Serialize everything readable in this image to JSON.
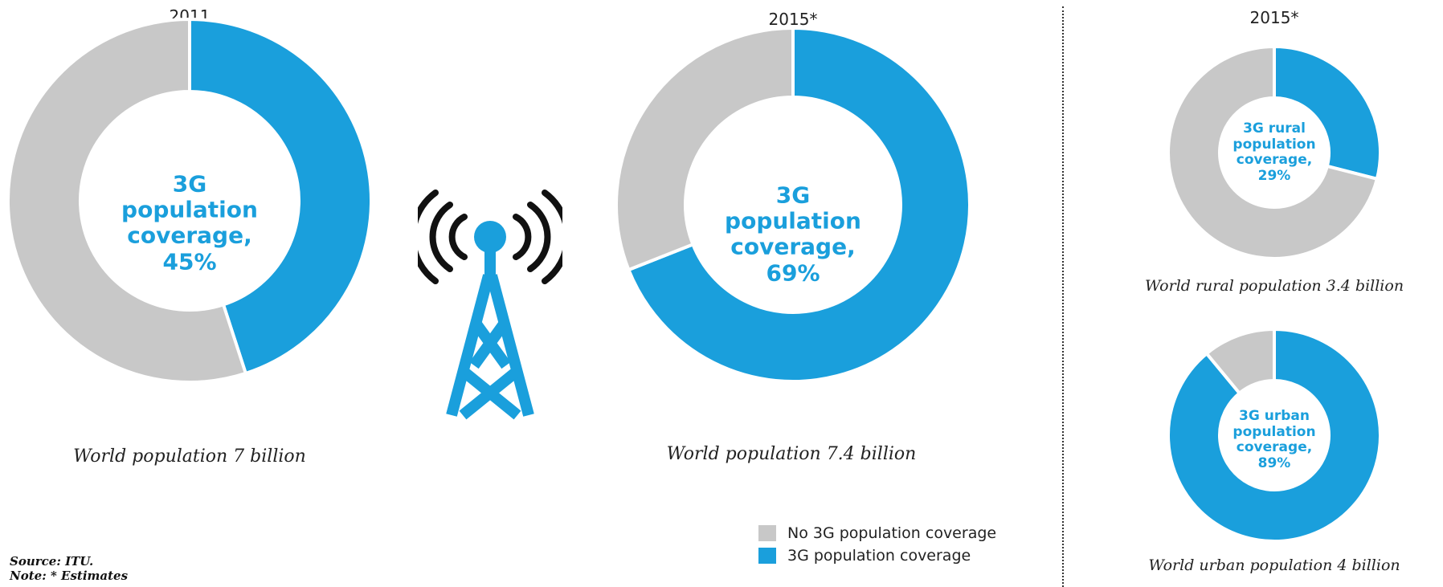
{
  "colors": {
    "coverage": "#1a9fdc",
    "no_coverage": "#c8c8c8"
  },
  "chart_data": [
    {
      "type": "pie",
      "subtype": "donut",
      "title": "2011",
      "labels": [
        "3G population coverage",
        "No 3G population coverage"
      ],
      "values": [
        45,
        55
      ],
      "center_label": [
        "3G",
        "population",
        "coverage,",
        "45%"
      ],
      "caption": "World population 7 billion"
    },
    {
      "type": "pie",
      "subtype": "donut",
      "title": "2015*",
      "labels": [
        "3G population coverage",
        "No 3G population coverage"
      ],
      "values": [
        69,
        31
      ],
      "center_label": [
        "3G",
        "population",
        "coverage,",
        "69%"
      ],
      "caption": "World population 7.4 billion"
    },
    {
      "type": "pie",
      "subtype": "donut",
      "title": "2015*",
      "labels": [
        "3G population coverage",
        "No 3G population coverage"
      ],
      "values": [
        29,
        71
      ],
      "center_label": [
        "3G rural",
        "population",
        "coverage,",
        "29%"
      ],
      "caption": "World rural population 3.4 billion"
    },
    {
      "type": "pie",
      "subtype": "donut",
      "title": "",
      "labels": [
        "3G population coverage",
        "No 3G population coverage"
      ],
      "values": [
        89,
        11
      ],
      "center_label": [
        "3G urban",
        "population",
        "coverage,",
        "89%"
      ],
      "caption": "World urban population 4 billion"
    }
  ],
  "legend": [
    {
      "label": "No 3G population coverage",
      "color": "#c8c8c8"
    },
    {
      "label": "3G population coverage",
      "color": "#1a9fdc"
    }
  ],
  "source": {
    "line1": "Source: ITU.",
    "line2": "Note: * Estimates"
  },
  "icons": {
    "tower": "cell-tower-icon"
  }
}
